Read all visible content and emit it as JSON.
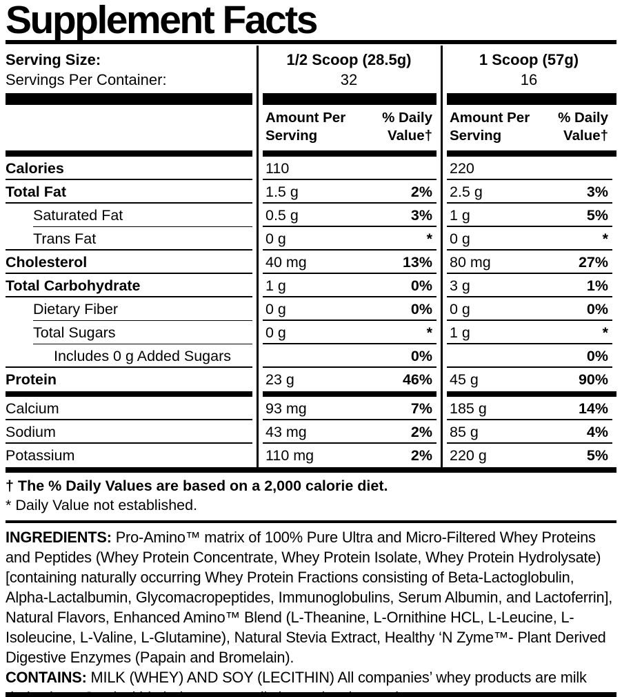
{
  "title": "Supplement Facts",
  "serving": {
    "serving_size_label": "Serving Size:",
    "servings_per_container_label": "Servings Per Container:",
    "columns": [
      {
        "serving_size": "1/2 Scoop (28.5g)",
        "servings": "32"
      },
      {
        "serving_size": "1 Scoop (57g)",
        "servings": "16"
      }
    ]
  },
  "table": {
    "amount_header_line1": "Amount Per",
    "amount_header_line2": "Serving",
    "dv_header_line1": "% Daily",
    "dv_header_line2": "Value†",
    "rows": [
      {
        "name": "Calories",
        "cols": [
          {
            "amount": "110",
            "dv": ""
          },
          {
            "amount": "220",
            "dv": ""
          }
        ]
      },
      {
        "name": "Total Fat",
        "cols": [
          {
            "amount": "1.5 g",
            "dv": "2%"
          },
          {
            "amount": "2.5 g",
            "dv": "3%"
          }
        ]
      },
      {
        "name": "Saturated Fat",
        "cols": [
          {
            "amount": "0.5 g",
            "dv": "3%"
          },
          {
            "amount": "1 g",
            "dv": "5%"
          }
        ]
      },
      {
        "name": "Trans Fat",
        "cols": [
          {
            "amount": "0 g",
            "dv": "*"
          },
          {
            "amount": "0 g",
            "dv": "*"
          }
        ]
      },
      {
        "name": "Cholesterol",
        "cols": [
          {
            "amount": "40 mg",
            "dv": "13%"
          },
          {
            "amount": "80 mg",
            "dv": "27%"
          }
        ]
      },
      {
        "name": "Total Carbohydrate",
        "cols": [
          {
            "amount": "1 g",
            "dv": "0%"
          },
          {
            "amount": "3 g",
            "dv": "1%"
          }
        ]
      },
      {
        "name": "Dietary Fiber",
        "cols": [
          {
            "amount": "0 g",
            "dv": "0%"
          },
          {
            "amount": "0 g",
            "dv": "0%"
          }
        ]
      },
      {
        "name": "Total Sugars",
        "cols": [
          {
            "amount": "0 g",
            "dv": "*"
          },
          {
            "amount": "1 g",
            "dv": "*"
          }
        ]
      },
      {
        "name": "Includes 0 g Added Sugars",
        "cols": [
          {
            "amount": "",
            "dv": "0%"
          },
          {
            "amount": "",
            "dv": "0%"
          }
        ]
      },
      {
        "name": "Protein",
        "cols": [
          {
            "amount": "23 g",
            "dv": "46%"
          },
          {
            "amount": "45 g",
            "dv": "90%"
          }
        ]
      },
      {
        "name": "Calcium",
        "cols": [
          {
            "amount": "93 mg",
            "dv": "7%"
          },
          {
            "amount": "185 g",
            "dv": "14%"
          }
        ]
      },
      {
        "name": "Sodium",
        "cols": [
          {
            "amount": "43 mg",
            "dv": "2%"
          },
          {
            "amount": "85 g",
            "dv": "4%"
          }
        ]
      },
      {
        "name": "Potassium",
        "cols": [
          {
            "amount": "110 mg",
            "dv": "2%"
          },
          {
            "amount": "220 g",
            "dv": "5%"
          }
        ]
      }
    ]
  },
  "footnotes": {
    "daily_value": "† The % Daily Values are based on a 2,000 calorie diet.",
    "not_established": "* Daily Value not established."
  },
  "ingredients": {
    "label": "INGREDIENTS:",
    "text": "Pro-Amino™ matrix of 100% Pure Ultra and Micro-Filtered Whey Proteins and Peptides (Whey Protein Concentrate, Whey Protein Isolate, Whey Protein Hydrolysate) [containing naturally occurring Whey Protein Fractions consisting of Beta-Lactoglobulin, Alpha-Lactalbumin, Glycomacropeptides, Immunoglobulins, Serum Albumin, and Lactoferrin], Natural Flavors, Enhanced Amino™ Blend (L-Theanine, L-Ornithine HCL, L-Leucine, L-Isoleucine, L-Valine, L-Glutamine), Natural Stevia Extract, Healthy ‘N Zyme™- Plant Derived Digestive Enzymes (Papain and Bromelain)."
  },
  "contains": {
    "label": "CONTAINS:",
    "text": "MILK (WHEY) AND SOY (LECITHIN) All companies’ whey products are milk derivatives. Soy lecithin helps to naturally instantize the product."
  },
  "colors": {
    "text": "#000000",
    "background": "#ffffff"
  }
}
